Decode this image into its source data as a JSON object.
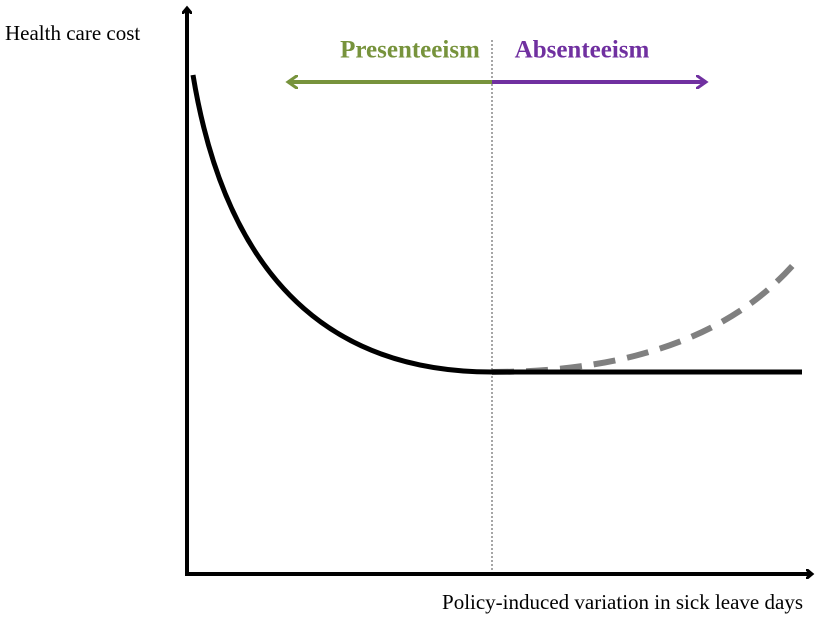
{
  "axes": {
    "y_label": "Health care cost",
    "x_label": "Policy-induced variation in sick leave days"
  },
  "annotations": {
    "left": "Presenteeism",
    "right": "Absenteeism"
  }
}
